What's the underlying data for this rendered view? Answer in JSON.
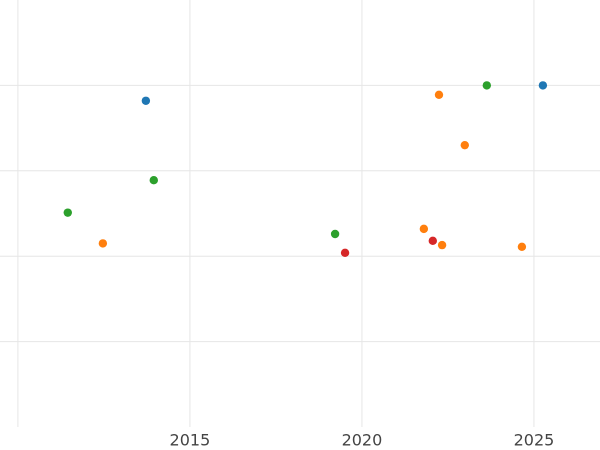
{
  "chart_data": {
    "type": "scatter",
    "xlim": [
      2009.48,
      2026.92
    ],
    "ylim": [
      0,
      5
    ],
    "xticks": [
      2010,
      2015,
      2020,
      2025
    ],
    "yticks": [
      1,
      2,
      3,
      4
    ],
    "xtick_labels_shown": [
      false,
      true,
      true,
      true
    ],
    "grid": true,
    "series": [
      {
        "color": "#1f77b4",
        "x": [
          2013.72,
          2025.26
        ],
        "values": [
          3.82,
          4.0
        ]
      },
      {
        "color": "#ff7f0e",
        "x": [
          2022.24,
          2022.99,
          2012.47,
          2021.8,
          2022.33,
          2024.65
        ],
        "values": [
          3.89,
          3.3,
          2.15,
          2.32,
          2.13,
          2.11
        ]
      },
      {
        "color": "#2ca02c",
        "x": [
          2023.63,
          2013.95,
          2011.45,
          2019.22
        ],
        "values": [
          4.0,
          2.89,
          2.51,
          2.26
        ]
      },
      {
        "color": "#d62728",
        "x": [
          2019.51,
          2022.06
        ],
        "values": [
          2.04,
          2.18
        ]
      }
    ]
  }
}
